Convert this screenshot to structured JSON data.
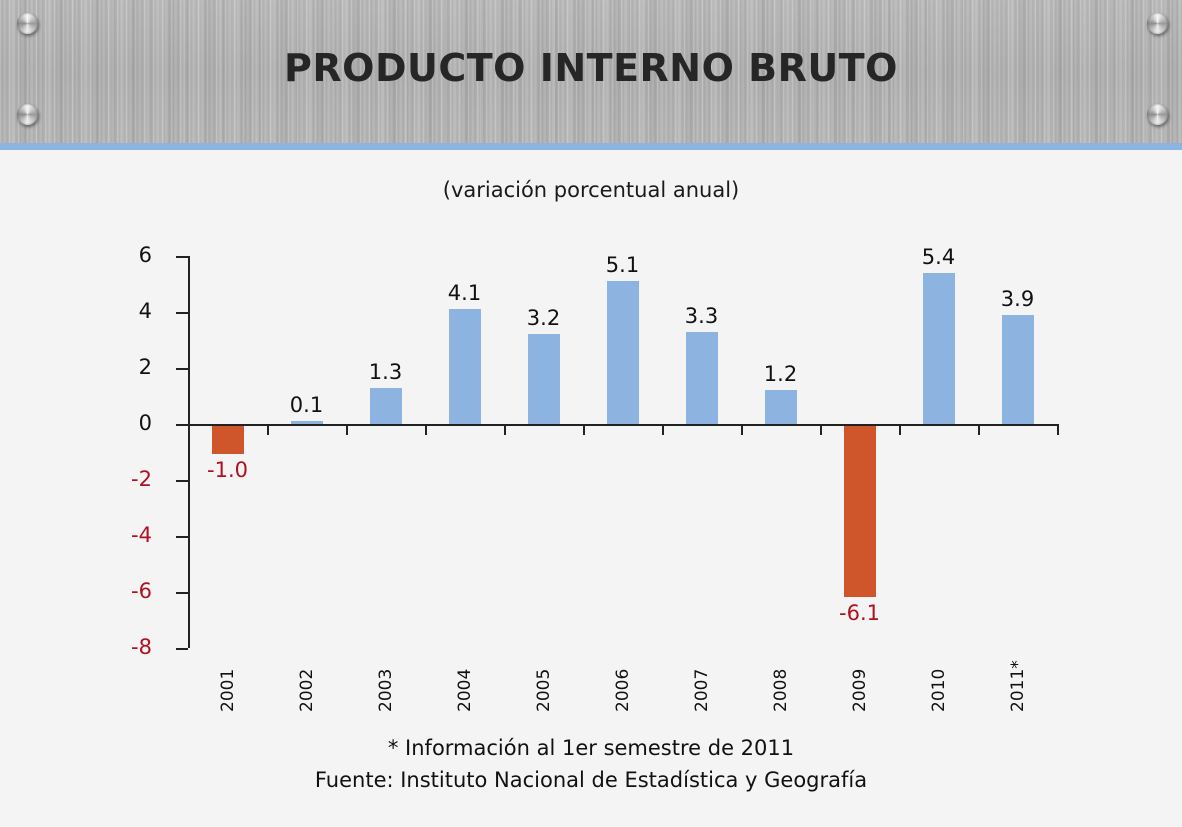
{
  "header": {
    "title": "PRODUCTO INTERNO BRUTO"
  },
  "subtitle": "(variación porcentual anual)",
  "footnotes": {
    "note": "* Información al 1er semestre de 2011",
    "source": "Fuente: Instituto Nacional de Estadística y Geografía"
  },
  "colors": {
    "positive_bar": "#8db4e0",
    "negative_bar": "#cf552b",
    "negative_text": "#b01020",
    "positive_text": "#111111",
    "header_strip": "#8db4e0"
  },
  "chart_data": {
    "type": "bar",
    "title": "PRODUCTO INTERNO BRUTO",
    "subtitle": "(variación porcentual anual)",
    "xlabel": "",
    "ylabel": "",
    "categories": [
      "2001",
      "2002",
      "2003",
      "2004",
      "2005",
      "2006",
      "2007",
      "2008",
      "2009",
      "2010",
      "2011*"
    ],
    "values": [
      -1.0,
      0.1,
      1.3,
      4.1,
      3.2,
      5.1,
      3.3,
      1.2,
      -6.1,
      5.4,
      3.9
    ],
    "value_labels": [
      "-1.0",
      "0.1",
      "1.3",
      "4.1",
      "3.2",
      "5.1",
      "3.3",
      "1.2",
      "-6.1",
      "5.4",
      "3.9"
    ],
    "ylim": [
      -8,
      6
    ],
    "yticks": [
      "6",
      "4",
      "2",
      "0",
      "-2",
      "-4",
      "-6",
      "-8"
    ],
    "grid": false,
    "legend": null,
    "annotations": [
      "* Información al 1er semestre de 2011",
      "Fuente: Instituto Nacional de Estadística y Geografía"
    ]
  }
}
